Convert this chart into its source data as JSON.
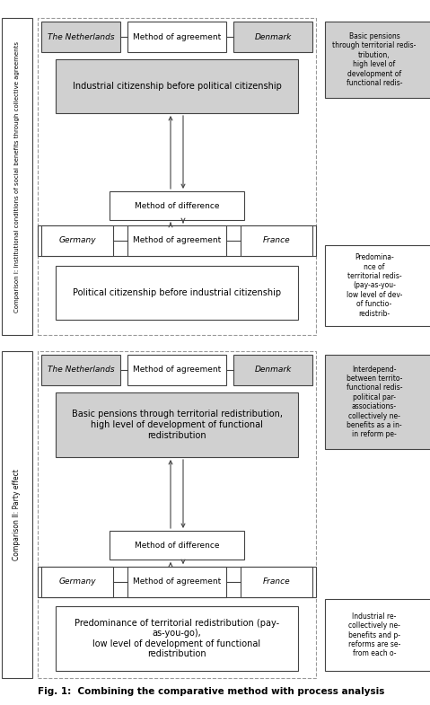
{
  "fig_width": 4.79,
  "fig_height": 7.85,
  "bg_color": "#ffffff",
  "gray": "#d0d0d0",
  "white": "#ffffff",
  "lc": "#444444",
  "dc": "#999999",
  "title": "Fig. 1:  Combining the comparative method with process analysis",
  "comp1_label": "Comparison I: Institutional conditions of social benefits through collective agreements",
  "comp2_label": "Comparison II: Party effect",
  "comp1": {
    "netherlands": "The Netherlands",
    "denmark": "Denmark",
    "germany": "Germany",
    "france": "France",
    "method_agreement": "Method of agreement",
    "method_difference": "Method of difference",
    "inner_top": "Industrial citizenship before political citizenship",
    "inner_bottom": "Political citizenship before industrial citizenship"
  },
  "comp2": {
    "netherlands": "The Netherlands",
    "denmark": "Denmark",
    "germany": "Germany",
    "france": "France",
    "method_agreement": "Method of agreement",
    "method_difference": "Method of difference",
    "inner_top": "Basic pensions through territorial redistribution,\nhigh level of development of functional\nredistribution",
    "inner_bottom": "Predominance of territorial redistribution (pay-\nas-you-go),\nlow level of development of functional\nredistribution"
  },
  "rb1_text": "Basic pensions\nthrough territorial redis-\ntribution,\nhigh level of\ndevelopment of\nfunctional redis-",
  "rb2_text": "Predomina-\nnce of\nterritorial redis-\n(pay-as-you-\nlow level of dev-\nof functio-\nredistrib-",
  "rb3_text": "Interdepend-\nbetween territo-\nfunctional redis-\npolitical par-\nassociations-\ncollectively ne-\nbenefits as a in-\nin reform pe-",
  "rb4_text": "Industrial re-\ncollectively ne-\nbenefits and p-\nreforms are se-\nfrom each o-"
}
